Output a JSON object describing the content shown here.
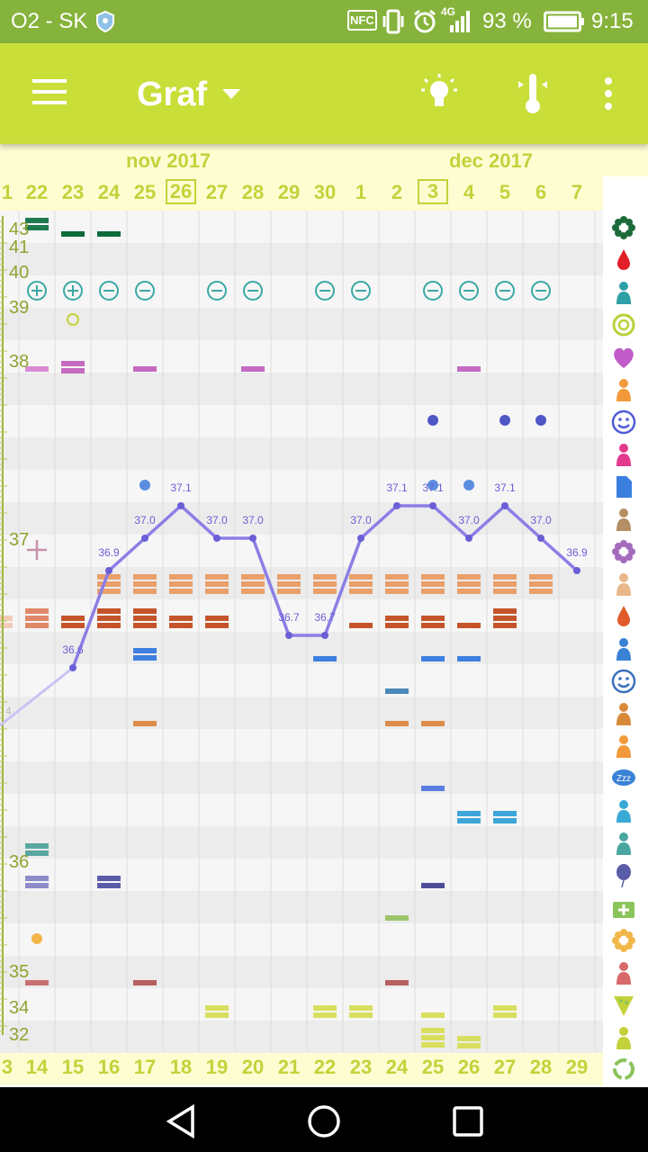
{
  "status_bar": {
    "carrier": "O2 - SK",
    "nfc": "NFC",
    "network": "4G",
    "battery": "93 %",
    "time": "9:15"
  },
  "app_bar": {
    "title": "Graf"
  },
  "months": {
    "left": "nov 2017",
    "right": "dec 2017"
  },
  "days_top": [
    "1",
    "22",
    "23",
    "24",
    "25",
    "26",
    "27",
    "28",
    "29",
    "30",
    "1",
    "2",
    "3",
    "4",
    "5",
    "6",
    "7"
  ],
  "days_top_boxed": [
    5,
    12
  ],
  "days_bottom": [
    "3",
    "14",
    "15",
    "16",
    "17",
    "18",
    "19",
    "20",
    "21",
    "22",
    "23",
    "24",
    "25",
    "26",
    "27",
    "28",
    "29"
  ],
  "temp_labels": [
    "43",
    "41",
    "40",
    "39",
    "38",
    "37",
    "36",
    "35",
    "34",
    "32"
  ],
  "temp_point_labels": [
    "36.6",
    "36.9",
    "37.0",
    "37.1",
    "37.0",
    "37.0",
    "36.7",
    "36.7",
    "37.0",
    "37.1",
    "37.1",
    "37.0",
    "37.1",
    "37.0",
    "36.9"
  ],
  "faint_label": "4",
  "colors": {
    "status": "#86b33b",
    "toolbar": "#c9de38",
    "accent": "#c3d23a",
    "temp_line": "#8b7ee6"
  },
  "chart_data": {
    "type": "line",
    "title": "",
    "x": [
      "15",
      "16",
      "17",
      "18",
      "19",
      "20",
      "21",
      "22",
      "23",
      "24",
      "25",
      "26",
      "27",
      "28",
      "29"
    ],
    "series": [
      {
        "values": [
          36.6,
          36.9,
          37.0,
          37.1,
          37.0,
          37.0,
          36.7,
          36.7,
          37.0,
          37.1,
          37.1,
          37.0,
          37.1,
          37.0,
          36.9
        ]
      }
    ]
  },
  "side_icons": [
    "flower-icon",
    "blood-drop-icon",
    "splash-icon",
    "ring-icon",
    "heart-icon",
    "pill-bottle-icon",
    "smiley-icon",
    "ovulation-test-icon",
    "document-icon",
    "pregnancy-test-icon",
    "sparkle-flower-icon",
    "breast-icon",
    "drop-icon",
    "cramps-icon",
    "mood-face-icon",
    "back-pain-icon",
    "woman-icon",
    "sleep-icon",
    "cake-icon",
    "couple-icon",
    "balloon-icon",
    "medkit-icon",
    "allergy-flower-icon",
    "figure-icon",
    "pizza-icon",
    "sofa-icon",
    "cycle-icon"
  ]
}
